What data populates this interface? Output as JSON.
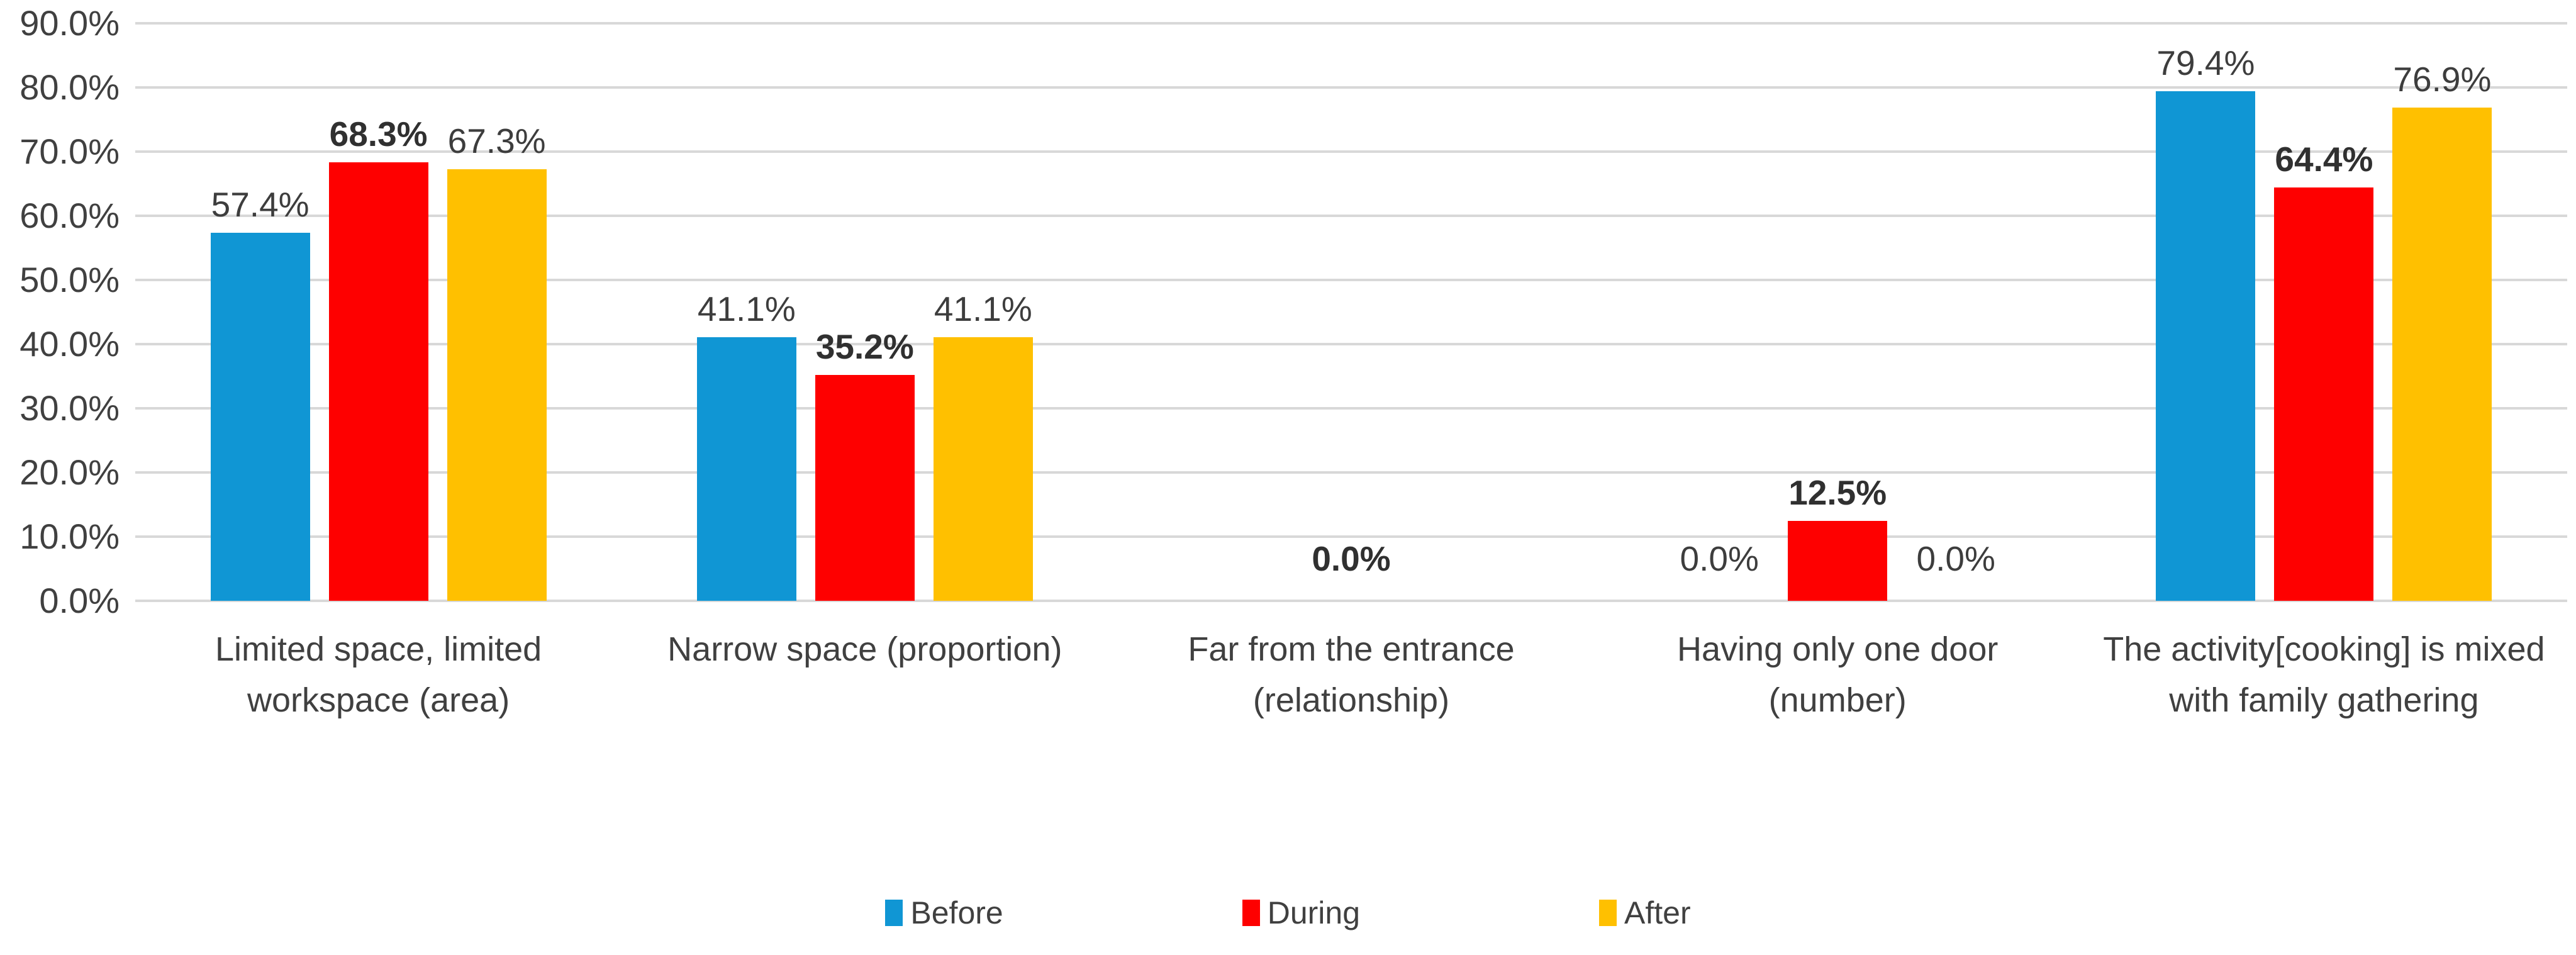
{
  "chart_data": {
    "type": "bar",
    "title": "",
    "xlabel": "",
    "ylabel": "",
    "categories": [
      "Limited space, limited\nworkspace (area)",
      "Narrow space (proportion)",
      "Far from the entrance\n(relationship)",
      "Having only one door\n(number)",
      "The activity[cooking] is mixed\nwith family gathering"
    ],
    "series": [
      {
        "name": "Before",
        "color": "#1096D4",
        "values": [
          57.4,
          41.1,
          0.0,
          0.0,
          79.4
        ],
        "data_labels": [
          "57.4%",
          "41.1%",
          null,
          "0.0%",
          "79.4%"
        ],
        "labels_bold": false
      },
      {
        "name": "During",
        "color": "#FE0000",
        "values": [
          68.3,
          35.2,
          0.0,
          12.5,
          64.4
        ],
        "data_labels": [
          "68.3%",
          "35.2%",
          "0.0%",
          "12.5%",
          "64.4%"
        ],
        "labels_bold": true
      },
      {
        "name": "After",
        "color": "#FFC000",
        "values": [
          67.3,
          41.1,
          0.0,
          0.0,
          76.9
        ],
        "data_labels": [
          "67.3%",
          "41.1%",
          null,
          "0.0%",
          "76.9%"
        ],
        "labels_bold": false
      }
    ],
    "y_axis": {
      "min": 0,
      "max": 90,
      "step": 10,
      "tick_labels": [
        "0.0%",
        "10.0%",
        "20.0%",
        "30.0%",
        "40.0%",
        "50.0%",
        "60.0%",
        "70.0%",
        "80.0%",
        "90.0%"
      ]
    },
    "legend": {
      "position": "bottom",
      "entries": [
        "Before",
        "During",
        "After"
      ]
    },
    "grid": true,
    "colors": {
      "gridline": "#d8d8d8",
      "text": "#404040",
      "background": "#ffffff"
    }
  }
}
